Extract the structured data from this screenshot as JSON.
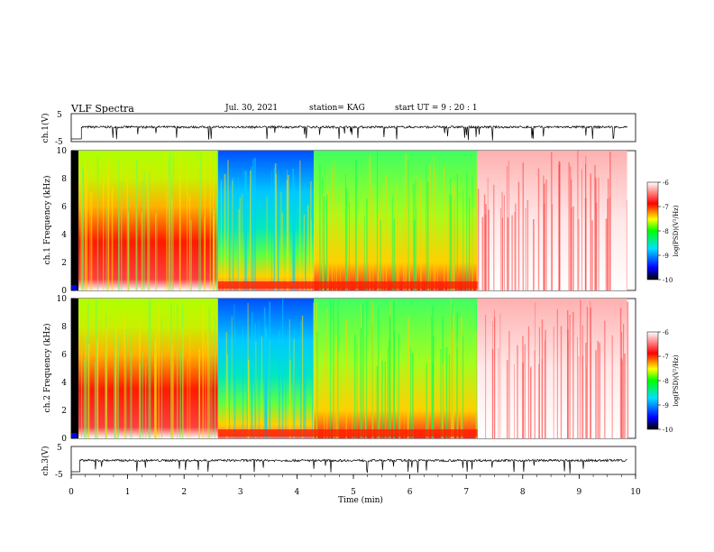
{
  "header": {
    "title": "VLF Spectra",
    "date": "Jul. 30, 2021",
    "station": "station= KAG",
    "start": "start UT = 9 : 20 : 1"
  },
  "chart_data": [
    {
      "type": "line",
      "ylabel": "ch.1(V)",
      "ylim": [
        -5,
        5
      ],
      "yticks": [
        "5",
        "-5"
      ],
      "xlim": [
        0,
        10
      ],
      "series": [
        {
          "baseline": 0.2,
          "noise": 0.6
        }
      ]
    },
    {
      "type": "heatmap",
      "ylabel": "ch.1 Frequency (kHz)",
      "ylim": [
        0,
        10
      ],
      "yticks": [
        "0",
        "2",
        "4",
        "6",
        "8",
        "10"
      ],
      "colorbar": {
        "label": "log(PSD)(V²/Hz)",
        "ticks": [
          "-6",
          "-7",
          "-8",
          "-9",
          "-10"
        ],
        "range": [
          -10,
          -6
        ],
        "colors": [
          "#000000",
          "#0000ff",
          "#00e0ff",
          "#00ff00",
          "#ffff00",
          "#ff0000",
          "#ffffff"
        ]
      },
      "segments": [
        {
          "t0": 0.0,
          "t1": 0.13,
          "level": -10
        },
        {
          "t0": 0.13,
          "t1": 2.6,
          "level": -7
        },
        {
          "t0": 2.6,
          "t1": 4.3,
          "level": -8.3
        },
        {
          "t0": 4.3,
          "t1": 7.2,
          "level": -7.7
        },
        {
          "t0": 7.2,
          "t1": 9.85,
          "level": -6.3
        }
      ]
    },
    {
      "type": "heatmap",
      "ylabel": "ch.2 Frequency (kHz)",
      "ylim": [
        0,
        10
      ],
      "yticks": [
        "0",
        "2",
        "4",
        "6",
        "8",
        "10"
      ],
      "colorbar": {
        "label": "log(PSD)(V²/Hz)",
        "ticks": [
          "-6",
          "-7",
          "-8",
          "-9",
          "-10"
        ],
        "range": [
          -10,
          -6
        ]
      }
    },
    {
      "type": "line",
      "ylabel": "ch.3(V)",
      "ylim": [
        -5,
        5
      ],
      "yticks": [
        "5",
        "-5"
      ],
      "xlim": [
        0,
        10
      ],
      "xlabel": "Time (min)",
      "xticks": [
        "0",
        "1",
        "2",
        "3",
        "4",
        "5",
        "6",
        "7",
        "8",
        "9",
        "10"
      ],
      "series": [
        {
          "baseline": 0.0,
          "noise": 0.6
        }
      ]
    }
  ]
}
